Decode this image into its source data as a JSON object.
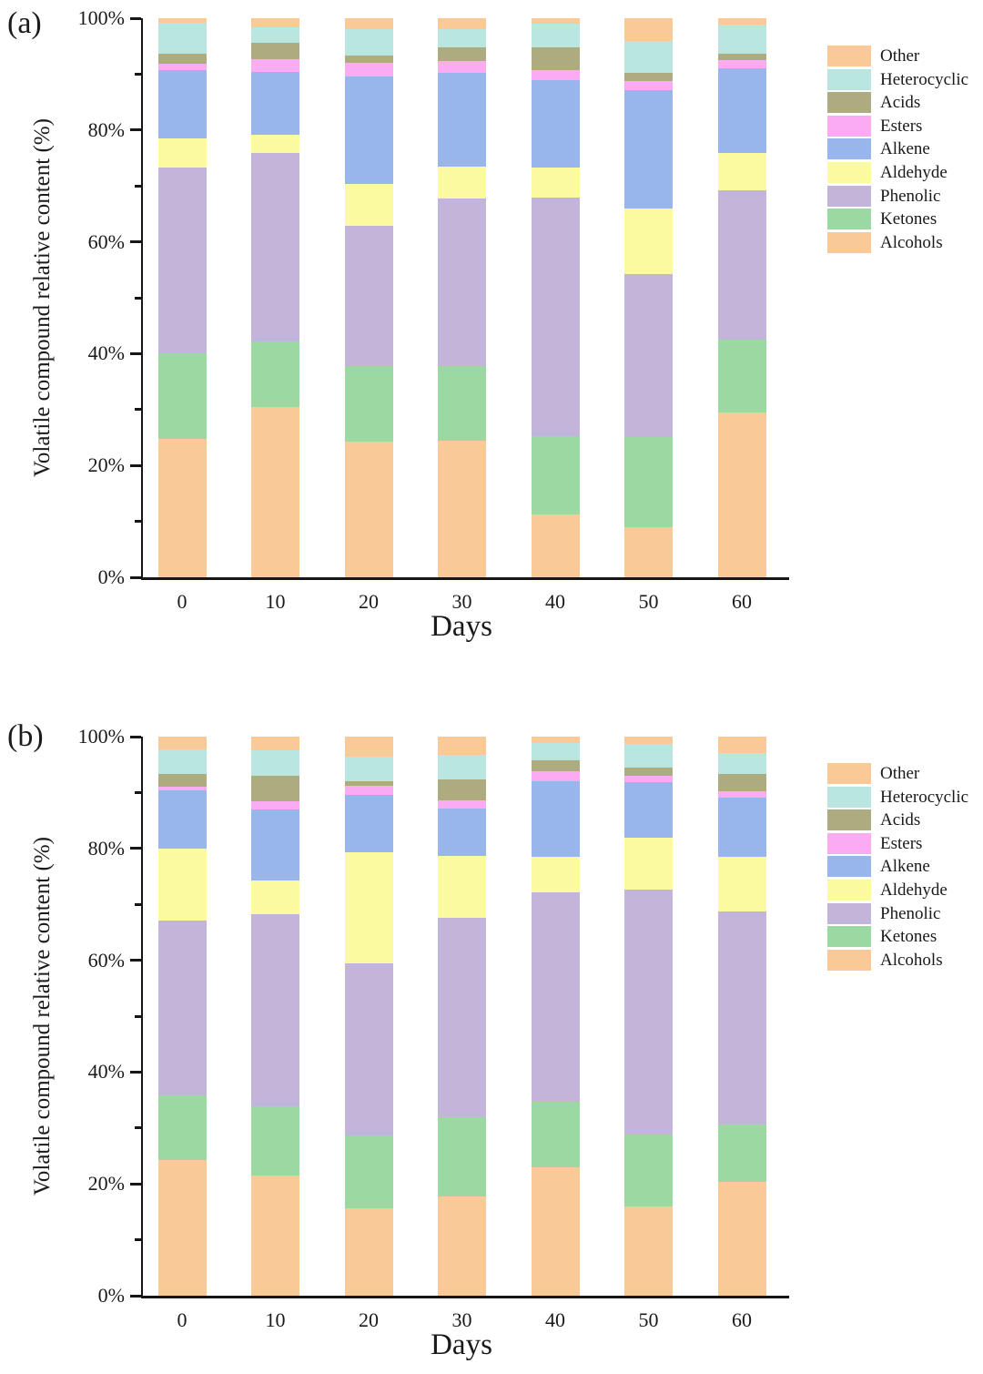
{
  "figure": {
    "background": "#ffffff",
    "text_color": "#1a1a1a",
    "axis_color": "#161616"
  },
  "chart_data": [
    {
      "type": "bar",
      "stacked": true,
      "panel_label": "(a)",
      "xlabel": "Days",
      "ylabel": "Volatile compound relative content (%)",
      "categories": [
        "0",
        "10",
        "20",
        "30",
        "40",
        "50",
        "60"
      ],
      "y_axis": {
        "min": 0,
        "max": 100,
        "major_tick_step": 20,
        "minor_tick_step": 10,
        "tick_labels": [
          "0%",
          "20%",
          "40%",
          "60%",
          "80%",
          "100%"
        ]
      },
      "legend": {
        "position": "right",
        "entries_top_to_bottom": [
          "Other",
          "Heterocyclic",
          "Acids",
          "Esters",
          "Alkene",
          "Aldehyde",
          "Phenolic",
          "Ketones",
          "Alcohols"
        ]
      },
      "series": [
        {
          "name": "Alcohols",
          "color": "#F9C997",
          "values": [
            24.8,
            30.5,
            24.3,
            24.4,
            11.2,
            8.9,
            29.5
          ]
        },
        {
          "name": "Ketones",
          "color": "#9CD8A1",
          "values": [
            15.3,
            11.7,
            13.5,
            13.4,
            14.1,
            16.2,
            13.0
          ]
        },
        {
          "name": "Phenolic",
          "color": "#C2B5D9",
          "values": [
            33.2,
            33.7,
            25.0,
            29.9,
            42.6,
            29.1,
            26.7
          ]
        },
        {
          "name": "Aldehyde",
          "color": "#FCFAA0",
          "values": [
            5.2,
            3.3,
            7.5,
            5.8,
            5.4,
            11.8,
            6.7
          ]
        },
        {
          "name": "Alkene",
          "color": "#98B6EC",
          "values": [
            12.2,
            11.2,
            19.3,
            16.8,
            15.6,
            21.1,
            15.1
          ]
        },
        {
          "name": "Esters",
          "color": "#FBABF2",
          "values": [
            1.1,
            2.3,
            2.5,
            2.1,
            1.9,
            1.7,
            1.5
          ]
        },
        {
          "name": "Acids",
          "color": "#ACAC80",
          "values": [
            1.9,
            2.9,
            1.3,
            2.4,
            4.0,
            1.5,
            1.2
          ]
        },
        {
          "name": "Heterocyclic",
          "color": "#BAE6E1",
          "values": [
            5.5,
            2.8,
            4.6,
            3.3,
            4.3,
            5.6,
            5.1
          ]
        },
        {
          "name": "Other",
          "color": "#F9C997",
          "values": [
            0.8,
            1.6,
            2.0,
            1.9,
            0.9,
            4.1,
            1.2
          ]
        }
      ]
    },
    {
      "type": "bar",
      "stacked": true,
      "panel_label": "(b)",
      "xlabel": "Days",
      "ylabel": "Volatile compound relative content (%)",
      "categories": [
        "0",
        "10",
        "20",
        "30",
        "40",
        "50",
        "60"
      ],
      "y_axis": {
        "min": 0,
        "max": 100,
        "major_tick_step": 20,
        "minor_tick_step": 10,
        "tick_labels": [
          "0%",
          "20%",
          "40%",
          "60%",
          "80%",
          "100%"
        ]
      },
      "legend": {
        "position": "right",
        "entries_top_to_bottom": [
          "Other",
          "Heterocyclic",
          "Acids",
          "Esters",
          "Alkene",
          "Aldehyde",
          "Phenolic",
          "Ketones",
          "Alcohols"
        ]
      },
      "series": [
        {
          "name": "Alcohols",
          "color": "#F9C997",
          "values": [
            24.3,
            21.5,
            15.7,
            17.8,
            23.0,
            15.9,
            20.3
          ]
        },
        {
          "name": "Ketones",
          "color": "#9CD8A1",
          "values": [
            11.5,
            12.4,
            12.9,
            14.1,
            11.7,
            12.9,
            10.3
          ]
        },
        {
          "name": "Phenolic",
          "color": "#C2B5D9",
          "values": [
            31.3,
            34.4,
            30.9,
            35.7,
            37.4,
            43.9,
            38.2
          ]
        },
        {
          "name": "Aldehyde",
          "color": "#FCFAA0",
          "values": [
            12.8,
            5.9,
            19.8,
            11.1,
            6.4,
            9.3,
            9.7
          ]
        },
        {
          "name": "Alkene",
          "color": "#98B6EC",
          "values": [
            10.5,
            12.7,
            10.3,
            8.4,
            13.6,
            9.8,
            10.6
          ]
        },
        {
          "name": "Esters",
          "color": "#FBABF2",
          "values": [
            0.7,
            1.5,
            1.6,
            1.5,
            1.7,
            1.2,
            1.1
          ]
        },
        {
          "name": "Acids",
          "color": "#ACAC80",
          "values": [
            2.3,
            4.6,
            0.8,
            3.7,
            2.0,
            1.5,
            3.1
          ]
        },
        {
          "name": "Heterocyclic",
          "color": "#BAE6E1",
          "values": [
            4.4,
            4.6,
            4.5,
            4.4,
            3.0,
            4.2,
            3.8
          ]
        },
        {
          "name": "Other",
          "color": "#F9C997",
          "values": [
            2.2,
            2.4,
            3.5,
            3.3,
            1.2,
            1.4,
            2.9
          ]
        }
      ]
    }
  ]
}
